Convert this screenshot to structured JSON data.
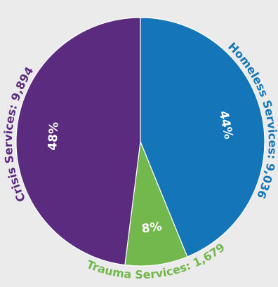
{
  "chart_data": {
    "type": "pie",
    "title": "",
    "start_angle_deg": 0,
    "direction": "clockwise",
    "slices": [
      {
        "label": "Homeless Services: 9,036",
        "category": "Homeless Services",
        "value": 9036,
        "percent_label": "44%",
        "color": "#1476b9"
      },
      {
        "label": "Trauma Services: 1,679",
        "category": "Trauma Services",
        "value": 1679,
        "percent_label": "8%",
        "color": "#72b84c"
      },
      {
        "label": "Crisis Services: 9,894",
        "category": "Crisis Services",
        "value": 9894,
        "percent_label": "48%",
        "color": "#5b2b80"
      }
    ],
    "background": "#ebebeb",
    "slice_border": "#ffffff"
  }
}
